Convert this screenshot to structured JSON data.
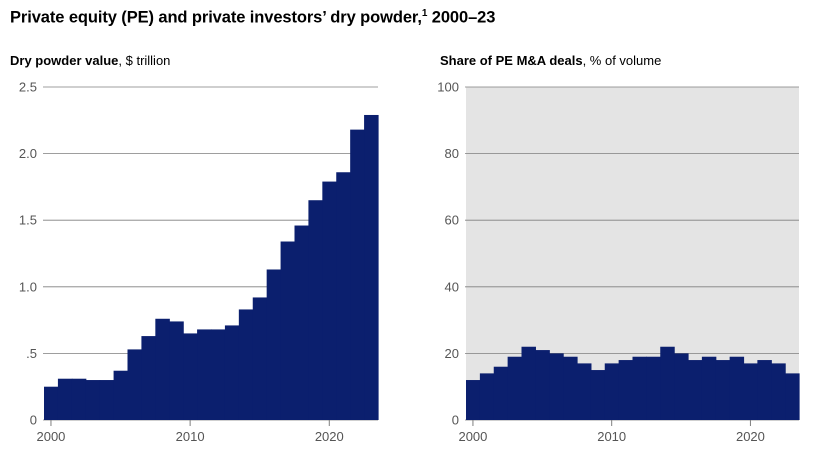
{
  "title": {
    "main": "Private equity (PE) and private investors’ dry powder,",
    "footnote": "1",
    "range": " 2000–23"
  },
  "colors": {
    "bar": "#0b1f6e",
    "grid": "#7f7f7f",
    "panel_bg": "#e4e4e4",
    "tick_text": "#555555"
  },
  "chart_data": [
    {
      "type": "bar",
      "title": "Dry powder value",
      "unit": "$ trillion",
      "ylim": [
        0,
        2.5
      ],
      "ytick_values": [
        0,
        0.5,
        1.0,
        1.5,
        2.0,
        2.5
      ],
      "ytick_labels": [
        "0",
        ".5",
        "1.0",
        "1.5",
        "2.0",
        "2.5"
      ],
      "xtick_labels": [
        "2000",
        "2010",
        "2020"
      ],
      "categories": [
        2000,
        2001,
        2002,
        2003,
        2004,
        2005,
        2006,
        2007,
        2008,
        2009,
        2010,
        2011,
        2012,
        2013,
        2014,
        2015,
        2016,
        2017,
        2018,
        2019,
        2020,
        2021,
        2022,
        2023
      ],
      "values": [
        0.25,
        0.31,
        0.31,
        0.3,
        0.3,
        0.37,
        0.53,
        0.63,
        0.76,
        0.74,
        0.65,
        0.68,
        0.68,
        0.71,
        0.83,
        0.92,
        1.13,
        1.34,
        1.46,
        1.65,
        1.79,
        1.86,
        2.18,
        2.29
      ],
      "grid": true,
      "background": "none"
    },
    {
      "type": "bar",
      "title": "Share of PE M&A deals",
      "unit": "% of volume",
      "ylim": [
        0,
        100
      ],
      "ytick_values": [
        0,
        20,
        40,
        60,
        80,
        100
      ],
      "ytick_labels": [
        "0",
        "20",
        "40",
        "60",
        "80",
        "100"
      ],
      "xtick_labels": [
        "2000",
        "2010",
        "2020"
      ],
      "categories": [
        2000,
        2001,
        2002,
        2003,
        2004,
        2005,
        2006,
        2007,
        2008,
        2009,
        2010,
        2011,
        2012,
        2013,
        2014,
        2015,
        2016,
        2017,
        2018,
        2019,
        2020,
        2021,
        2022,
        2023
      ],
      "values": [
        12,
        14,
        16,
        19,
        22,
        21,
        20,
        19,
        17,
        15,
        17,
        18,
        19,
        19,
        22,
        20,
        18,
        19,
        18,
        19,
        17,
        18,
        17,
        14
      ],
      "grid": true,
      "background": "gray"
    }
  ]
}
